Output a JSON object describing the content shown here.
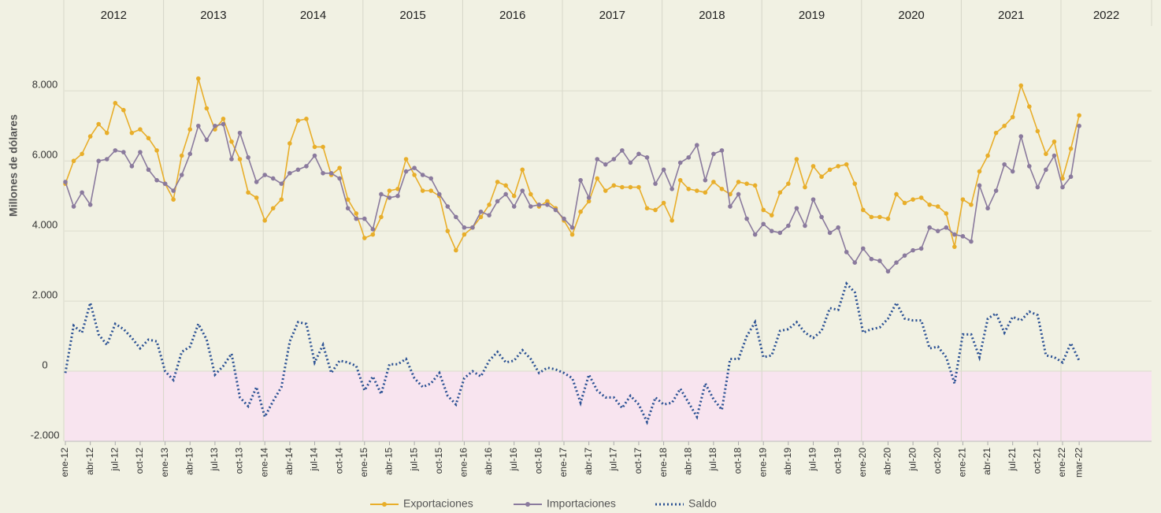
{
  "chart_data": {
    "type": "line",
    "y_label": "Millones de dólares",
    "year_labels": [
      "2012",
      "2013",
      "2014",
      "2015",
      "2016",
      "2017",
      "2018",
      "2019",
      "2020",
      "2021",
      "2022"
    ],
    "categories": [
      "ene-12",
      null,
      null,
      "abr-12",
      null,
      null,
      "jul-12",
      null,
      null,
      "oct-12",
      null,
      null,
      "ene-13",
      null,
      null,
      "abr-13",
      null,
      null,
      "jul-13",
      null,
      null,
      "oct-13",
      null,
      null,
      "ene-14",
      null,
      null,
      "abr-14",
      null,
      null,
      "jul-14",
      null,
      null,
      "oct-14",
      null,
      null,
      "ene-15",
      null,
      null,
      "abr-15",
      null,
      null,
      "jul-15",
      null,
      null,
      "oct-15",
      null,
      null,
      "ene-16",
      null,
      null,
      "abr-16",
      null,
      null,
      "jul-16",
      null,
      null,
      "oct-16",
      null,
      null,
      "ene-17",
      null,
      null,
      "abr-17",
      null,
      null,
      "jul-17",
      null,
      null,
      "oct-17",
      null,
      null,
      "ene-18",
      null,
      null,
      "abr-18",
      null,
      null,
      "jul-18",
      null,
      null,
      "oct-18",
      null,
      null,
      "ene-19",
      null,
      null,
      "abr-19",
      null,
      null,
      "jul-19",
      null,
      null,
      "oct-19",
      null,
      null,
      "ene-20",
      null,
      null,
      "abr-20",
      null,
      null,
      "jul-20",
      null,
      null,
      "oct-20",
      null,
      null,
      "ene-21",
      null,
      null,
      "abr-21",
      null,
      null,
      "jul-21",
      null,
      null,
      "oct-21",
      null,
      null,
      "ene-22",
      null,
      "mar-22"
    ],
    "series": [
      {
        "name": "Exportaciones",
        "color": "#e8ae2a",
        "marker": true,
        "dash": false,
        "values": [
          5350,
          6000,
          6200,
          6700,
          7050,
          6800,
          7650,
          7450,
          6800,
          6900,
          6650,
          6300,
          5350,
          4900,
          6150,
          6900,
          8350,
          7500,
          6900,
          7200,
          6550,
          6050,
          5100,
          4950,
          4300,
          4650,
          4900,
          6500,
          7150,
          7200,
          6400,
          6400,
          5600,
          5800,
          4900,
          4500,
          3800,
          3900,
          4400,
          5150,
          5200,
          6050,
          5600,
          5150,
          5150,
          5000,
          4000,
          3450,
          3900,
          4100,
          4400,
          4750,
          5400,
          5300,
          5000,
          5750,
          5050,
          4700,
          4850,
          4650,
          4300,
          3900,
          4550,
          4850,
          5500,
          5150,
          5300,
          5250,
          5250,
          5250,
          4650,
          4600,
          4800,
          4300,
          5450,
          5200,
          5150,
          5100,
          5400,
          5200,
          5050,
          5400,
          5350,
          5300,
          4600,
          4450,
          5100,
          5350,
          6050,
          5250,
          5850,
          5550,
          5750,
          5850,
          5900,
          5350,
          4600,
          4400,
          4400,
          4350,
          5050,
          4800,
          4900,
          4950,
          4750,
          4700,
          4500,
          3550,
          4900,
          4750,
          5700,
          6150,
          6800,
          7000,
          7250,
          8150,
          7550,
          6850,
          6200,
          6550,
          5500,
          6350,
          7300
        ]
      },
      {
        "name": "Importaciones",
        "color": "#8a7a9d",
        "marker": true,
        "dash": false,
        "values": [
          5400,
          4700,
          5100,
          4750,
          6000,
          6050,
          6300,
          6250,
          5850,
          6250,
          5750,
          5450,
          5350,
          5150,
          5600,
          6200,
          7000,
          6600,
          7000,
          7050,
          6050,
          6800,
          6100,
          5400,
          5600,
          5500,
          5350,
          5650,
          5750,
          5850,
          6150,
          5650,
          5650,
          5500,
          4650,
          4350,
          4350,
          4050,
          5050,
          4950,
          5000,
          5700,
          5800,
          5600,
          5500,
          5050,
          4700,
          4400,
          4100,
          4100,
          4550,
          4450,
          4850,
          5050,
          4700,
          5150,
          4700,
          4750,
          4750,
          4600,
          4350,
          4100,
          5450,
          4950,
          6050,
          5900,
          6050,
          6300,
          5950,
          6200,
          6100,
          5350,
          5750,
          5200,
          5950,
          6100,
          6450,
          5450,
          6200,
          6300,
          4700,
          5050,
          4350,
          3900,
          4200,
          4000,
          3950,
          4150,
          4650,
          4150,
          4900,
          4400,
          3950,
          4100,
          3400,
          3100,
          3500,
          3200,
          3150,
          2850,
          3100,
          3300,
          3450,
          3500,
          4100,
          4000,
          4100,
          3900,
          3850,
          3700,
          5300,
          4650,
          5150,
          5900,
          5700,
          6700,
          5850,
          5250,
          5750,
          6150,
          5250,
          5550,
          7000
        ]
      },
      {
        "name": "Saldo",
        "color": "#2c5294",
        "marker": false,
        "dash": true,
        "values": [
          -50,
          1300,
          1100,
          1950,
          1050,
          750,
          1350,
          1200,
          950,
          650,
          900,
          850,
          0,
          -250,
          550,
          700,
          1350,
          900,
          -100,
          150,
          500,
          -750,
          -1000,
          -450,
          -1300,
          -850,
          -450,
          850,
          1400,
          1350,
          250,
          750,
          -50,
          300,
          250,
          150,
          -550,
          -150,
          -650,
          200,
          200,
          350,
          -200,
          -450,
          -350,
          -50,
          -700,
          -950,
          -200,
          0,
          -150,
          300,
          550,
          250,
          300,
          600,
          350,
          -50,
          100,
          50,
          -50,
          -200,
          -900,
          -100,
          -550,
          -750,
          -750,
          -1050,
          -700,
          -950,
          -1450,
          -750,
          -950,
          -900,
          -500,
          -900,
          -1300,
          -350,
          -800,
          -1100,
          350,
          350,
          1000,
          1400,
          400,
          450,
          1150,
          1200,
          1400,
          1100,
          950,
          1150,
          1800,
          1750,
          2500,
          2250,
          1100,
          1200,
          1250,
          1500,
          1950,
          1500,
          1450,
          1450,
          650,
          700,
          400,
          -350,
          1050,
          1050,
          400,
          1500,
          1650,
          1100,
          1550,
          1450,
          1700,
          1600,
          450,
          400,
          250,
          800,
          300
        ]
      }
    ],
    "ylim": [
      -2000,
      9850
    ],
    "yticks": [
      {
        "value": -2000,
        "label": "-2.000"
      },
      0,
      {
        "value": 2000,
        "label": "2.000"
      },
      {
        "value": 4000,
        "label": "4.000"
      },
      {
        "value": 6000,
        "label": "6.000"
      },
      {
        "value": 8000,
        "label": "8.000"
      }
    ],
    "grid": true,
    "negative_fill": "#f8e4ef",
    "background": "#f1f1e3"
  }
}
